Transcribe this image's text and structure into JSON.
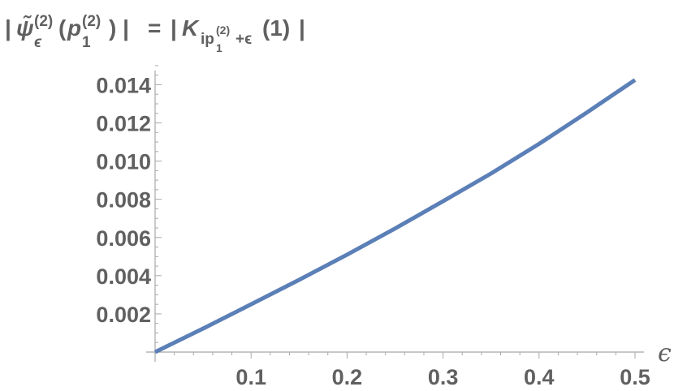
{
  "chart_data": {
    "type": "line",
    "title": {
      "lhs_bar_open": "|",
      "lhs_psi": "ψ̃",
      "lhs_psi_sup": "(2)",
      "lhs_psi_sub": "ϵ",
      "lhs_open_paren": "(",
      "lhs_p": "p",
      "lhs_p_sup": "(2)",
      "lhs_p_sub": "1",
      "lhs_close": ") |",
      "equals": "=",
      "rhs_bar_open": "|",
      "rhs_K": "K",
      "rhs_sub_ip": "ip",
      "rhs_sub_ip_sup": "(2)",
      "rhs_sub_ip_sub": "1",
      "rhs_sub_tail": "+ϵ",
      "rhs_arg": "(1)",
      "rhs_bar_close": "|"
    },
    "xlabel": "ϵ",
    "ylabel": "",
    "xlim": [
      0,
      0.5
    ],
    "ylim": [
      -0.0001,
      0.015
    ],
    "x_ticks": [
      0.1,
      0.2,
      0.3,
      0.4,
      0.5
    ],
    "x_tick_labels": [
      "0.1",
      "0.2",
      "0.3",
      "0.4",
      "0.5"
    ],
    "y_ticks": [
      0.002,
      0.004,
      0.006,
      0.008,
      0.01,
      0.012,
      0.014
    ],
    "y_tick_labels": [
      "0.002",
      "0.004",
      "0.006",
      "0.008",
      "0.010",
      "0.012",
      "0.014"
    ],
    "grid": false,
    "series": [
      {
        "color": "#5b7fb7",
        "x": [
          0,
          0.05,
          0.1,
          0.15,
          0.2,
          0.25,
          0.3,
          0.35,
          0.4,
          0.45,
          0.5
        ],
        "y": [
          0.0,
          0.00123,
          0.0025,
          0.00378,
          0.0051,
          0.00647,
          0.0079,
          0.00935,
          0.0109,
          0.01255,
          0.01425
        ]
      }
    ]
  }
}
